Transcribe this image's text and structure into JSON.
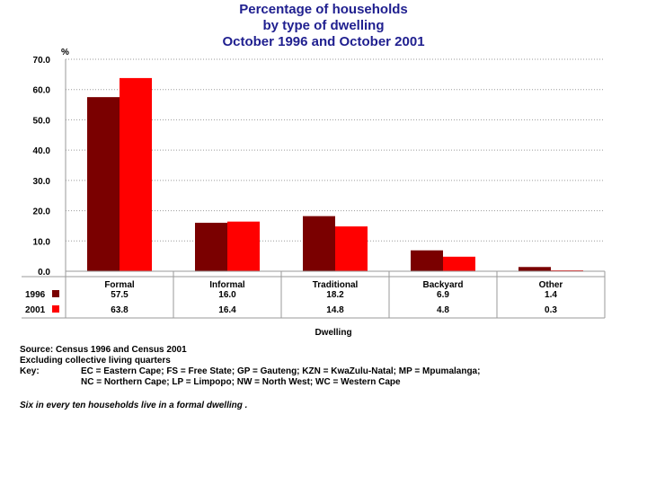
{
  "title_lines": [
    "Percentage of households",
    "by type of dwelling",
    "October 1996 and October 2001"
  ],
  "chart_data": {
    "type": "bar",
    "title": "Percentage of households by type of dwelling October 1996 and October 2001",
    "ylabel": "%",
    "xlabel": "Dwelling",
    "ylim": [
      0,
      70
    ],
    "yticks": [
      "0.0",
      "10.0",
      "20.0",
      "30.0",
      "40.0",
      "50.0",
      "60.0",
      "70.0"
    ],
    "grid": true,
    "legend": "data-table",
    "categories": [
      "Formal",
      "Informal",
      "Traditional",
      "Backyard",
      "Other"
    ],
    "series": [
      {
        "name": "1996",
        "color": "#7a0000",
        "values": [
          57.5,
          16.0,
          18.2,
          6.9,
          1.4
        ],
        "labels": [
          "57.5",
          "16.0",
          "18.2",
          "6.9",
          "1.4"
        ]
      },
      {
        "name": "2001",
        "color": "#ff0000",
        "values": [
          63.8,
          16.4,
          14.8,
          4.8,
          0.3
        ],
        "labels": [
          "63.8",
          "16.4",
          "14.8",
          "4.8",
          "0.3"
        ]
      }
    ]
  },
  "notes": {
    "source": "Source: Census 1996 and Census 2001",
    "excluding": "Excluding collective living quarters",
    "key_label": "Key:",
    "key_lines": [
      "EC = Eastern Cape; FS = Free State; GP = Gauteng; KZN = KwaZulu-Natal; MP = Mpumalanga;",
      "NC = Northern Cape; LP = Limpopo; NW = North West; WC = Western Cape"
    ],
    "remark": "Six in every ten households live in a formal dwelling ."
  }
}
